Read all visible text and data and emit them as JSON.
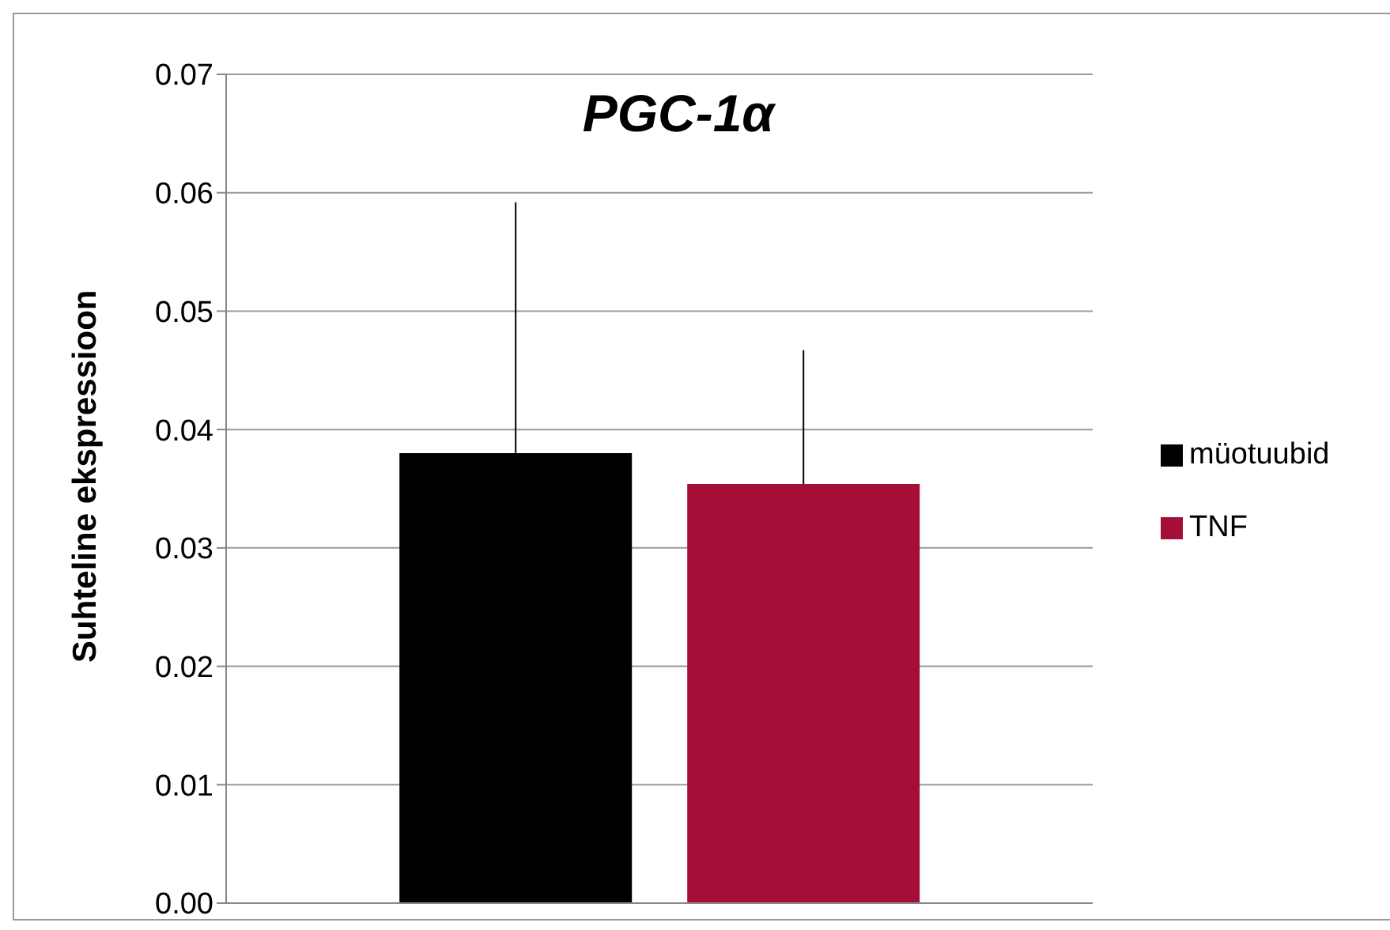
{
  "chart_data": {
    "type": "bar",
    "title": "PGC-1α",
    "ylabel": "Suhteline ekspressioon",
    "categories": [
      null
    ],
    "series": [
      {
        "name": "müotuubid",
        "color": "#000000",
        "values": [
          0.038
        ],
        "errors": [
          [
            0.038,
            0.0592
          ]
        ]
      },
      {
        "name": "TNF",
        "color": "#a50e37",
        "values": [
          0.0354
        ],
        "errors": [
          [
            0.0354,
            0.0467
          ]
        ]
      }
    ],
    "ylim": [
      0,
      0.07
    ],
    "yticks": [
      {
        "value": 0,
        "label": "0.00"
      },
      {
        "value": 0.01,
        "label": "0.01"
      },
      {
        "value": 0.02,
        "label": "0.02"
      },
      {
        "value": 0.03,
        "label": "0.03"
      },
      {
        "value": 0.04,
        "label": "0.04"
      },
      {
        "value": 0.05,
        "label": "0.05"
      },
      {
        "value": 0.06,
        "label": "0.06"
      },
      {
        "value": 0.07,
        "label": "0.07"
      }
    ],
    "grid": "y",
    "legend": "right"
  }
}
